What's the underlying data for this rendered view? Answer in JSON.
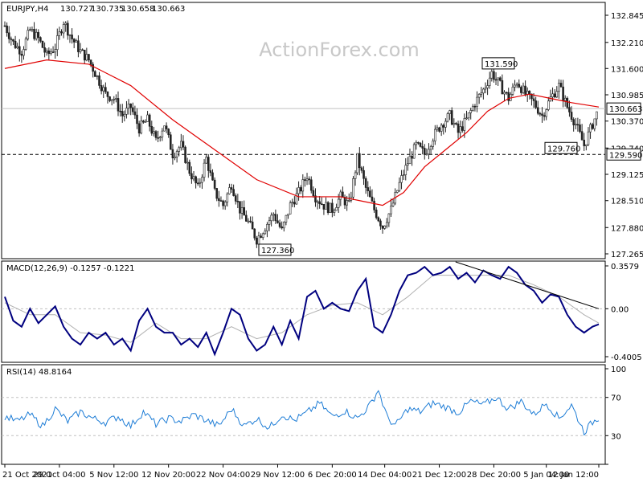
{
  "chart_data": {
    "type": "candlestick-with-indicators",
    "symbol": "EURJPY,H4",
    "header_values": [
      "130.727",
      "130.735",
      "130.658",
      "130.663"
    ],
    "watermark": "ActionForex.com",
    "colors": {
      "candles": "#222222",
      "ma": "#e00000",
      "macd": "#00007f",
      "signal": "#b0b0b0",
      "rsi": "#1e7dd6",
      "grid": "#c0c0c0",
      "frame": "#000000"
    },
    "price_panel": {
      "ylim": [
        127.265,
        132.845
      ],
      "y_ticks": [
        "132.845",
        "132.210",
        "131.600",
        "130.985",
        "130.370",
        "129.740",
        "129.125",
        "128.510",
        "127.880",
        "127.265"
      ],
      "current_price": "130.663",
      "support_level": "129.590",
      "annotations": [
        "131.590",
        "129.760",
        "127.360"
      ],
      "close_path": [
        [
          0,
          132.6
        ],
        [
          4,
          132.2
        ],
        [
          8,
          132.0
        ],
        [
          12,
          132.5
        ],
        [
          16,
          132.3
        ],
        [
          20,
          131.9
        ],
        [
          24,
          132.1
        ],
        [
          28,
          132.7
        ],
        [
          32,
          132.3
        ],
        [
          36,
          132.0
        ],
        [
          40,
          131.8
        ],
        [
          44,
          131.4
        ],
        [
          48,
          131.0
        ],
        [
          52,
          130.9
        ],
        [
          56,
          130.5
        ],
        [
          60,
          130.7
        ],
        [
          64,
          130.2
        ],
        [
          68,
          130.4
        ],
        [
          72,
          129.9
        ],
        [
          76,
          130.3
        ],
        [
          80,
          129.6
        ],
        [
          84,
          129.8
        ],
        [
          88,
          129.2
        ],
        [
          92,
          128.8
        ],
        [
          96,
          129.5
        ],
        [
          100,
          128.7
        ],
        [
          104,
          128.4
        ],
        [
          108,
          128.9
        ],
        [
          112,
          128.3
        ],
        [
          116,
          128.0
        ],
        [
          120,
          127.6
        ],
        [
          124,
          127.9
        ],
        [
          128,
          128.2
        ],
        [
          132,
          127.8
        ],
        [
          136,
          128.4
        ],
        [
          140,
          128.7
        ],
        [
          144,
          129.1
        ],
        [
          148,
          128.6
        ],
        [
          152,
          128.4
        ],
        [
          156,
          128.3
        ],
        [
          160,
          128.6
        ],
        [
          164,
          128.4
        ],
        [
          168,
          129.5
        ],
        [
          172,
          128.8
        ],
        [
          176,
          128.3
        ],
        [
          180,
          127.9
        ],
        [
          184,
          128.3
        ],
        [
          188,
          128.9
        ],
        [
          192,
          129.4
        ],
        [
          196,
          129.8
        ],
        [
          200,
          129.6
        ],
        [
          204,
          130.0
        ],
        [
          208,
          130.3
        ],
        [
          212,
          130.5
        ],
        [
          216,
          130.1
        ],
        [
          220,
          130.4
        ],
        [
          224,
          130.8
        ],
        [
          228,
          131.1
        ],
        [
          232,
          131.5
        ],
        [
          236,
          131.2
        ],
        [
          240,
          130.9
        ],
        [
          244,
          131.3
        ],
        [
          248,
          131.0
        ],
        [
          252,
          130.8
        ],
        [
          256,
          130.5
        ],
        [
          260,
          130.9
        ],
        [
          264,
          131.2
        ],
        [
          268,
          130.7
        ],
        [
          272,
          130.3
        ],
        [
          276,
          129.8
        ],
        [
          280,
          130.3
        ],
        [
          283,
          130.66
        ]
      ],
      "ma_path": [
        [
          0,
          131.6
        ],
        [
          20,
          131.8
        ],
        [
          40,
          131.7
        ],
        [
          60,
          131.2
        ],
        [
          80,
          130.4
        ],
        [
          100,
          129.7
        ],
        [
          120,
          129.0
        ],
        [
          140,
          128.6
        ],
        [
          160,
          128.6
        ],
        [
          170,
          128.5
        ],
        [
          180,
          128.4
        ],
        [
          190,
          128.7
        ],
        [
          200,
          129.3
        ],
        [
          210,
          129.7
        ],
        [
          220,
          130.1
        ],
        [
          230,
          130.6
        ],
        [
          240,
          130.9
        ],
        [
          250,
          131.0
        ],
        [
          260,
          130.9
        ],
        [
          270,
          130.8
        ],
        [
          283,
          130.7
        ]
      ]
    },
    "macd_panel": {
      "label": "MACD(12,26,9) -0.1257 -0.1221",
      "ylim": [
        -0.4005,
        0.3579
      ],
      "y_ticks": [
        "0.3579",
        "0.00",
        "-0.4005"
      ],
      "macd_path": [
        [
          0,
          0.1
        ],
        [
          4,
          -0.1
        ],
        [
          8,
          -0.15
        ],
        [
          12,
          0.0
        ],
        [
          16,
          -0.12
        ],
        [
          20,
          -0.05
        ],
        [
          24,
          0.02
        ],
        [
          28,
          -0.15
        ],
        [
          32,
          -0.25
        ],
        [
          36,
          -0.3
        ],
        [
          40,
          -0.2
        ],
        [
          44,
          -0.25
        ],
        [
          48,
          -0.2
        ],
        [
          52,
          -0.3
        ],
        [
          56,
          -0.25
        ],
        [
          60,
          -0.35
        ],
        [
          64,
          -0.1
        ],
        [
          68,
          0.0
        ],
        [
          72,
          -0.15
        ],
        [
          76,
          -0.2
        ],
        [
          80,
          -0.2
        ],
        [
          84,
          -0.3
        ],
        [
          88,
          -0.25
        ],
        [
          92,
          -0.32
        ],
        [
          96,
          -0.2
        ],
        [
          100,
          -0.38
        ],
        [
          104,
          -0.2
        ],
        [
          108,
          0.0
        ],
        [
          112,
          -0.05
        ],
        [
          116,
          -0.25
        ],
        [
          120,
          -0.35
        ],
        [
          124,
          -0.3
        ],
        [
          128,
          -0.15
        ],
        [
          132,
          -0.3
        ],
        [
          136,
          -0.1
        ],
        [
          140,
          -0.25
        ],
        [
          144,
          0.1
        ],
        [
          148,
          0.15
        ],
        [
          152,
          0.0
        ],
        [
          156,
          0.05
        ],
        [
          160,
          0.0
        ],
        [
          164,
          -0.02
        ],
        [
          168,
          0.15
        ],
        [
          172,
          0.25
        ],
        [
          176,
          -0.15
        ],
        [
          180,
          -0.2
        ],
        [
          184,
          -0.05
        ],
        [
          188,
          0.15
        ],
        [
          192,
          0.28
        ],
        [
          196,
          0.3
        ],
        [
          200,
          0.35
        ],
        [
          204,
          0.28
        ],
        [
          208,
          0.3
        ],
        [
          212,
          0.35
        ],
        [
          216,
          0.25
        ],
        [
          220,
          0.3
        ],
        [
          224,
          0.22
        ],
        [
          228,
          0.32
        ],
        [
          232,
          0.28
        ],
        [
          236,
          0.25
        ],
        [
          240,
          0.35
        ],
        [
          244,
          0.3
        ],
        [
          248,
          0.2
        ],
        [
          252,
          0.15
        ],
        [
          256,
          0.05
        ],
        [
          260,
          0.12
        ],
        [
          264,
          0.1
        ],
        [
          268,
          -0.05
        ],
        [
          272,
          -0.15
        ],
        [
          276,
          -0.2
        ],
        [
          280,
          -0.15
        ],
        [
          283,
          -0.13
        ]
      ],
      "signal_path": [
        [
          0,
          0.05
        ],
        [
          12,
          -0.05
        ],
        [
          24,
          -0.05
        ],
        [
          36,
          -0.2
        ],
        [
          48,
          -0.22
        ],
        [
          60,
          -0.28
        ],
        [
          72,
          -0.12
        ],
        [
          84,
          -0.25
        ],
        [
          96,
          -0.25
        ],
        [
          108,
          -0.15
        ],
        [
          120,
          -0.25
        ],
        [
          132,
          -0.2
        ],
        [
          144,
          -0.05
        ],
        [
          156,
          0.03
        ],
        [
          168,
          0.05
        ],
        [
          180,
          -0.05
        ],
        [
          192,
          0.1
        ],
        [
          204,
          0.28
        ],
        [
          216,
          0.28
        ],
        [
          228,
          0.28
        ],
        [
          240,
          0.28
        ],
        [
          252,
          0.2
        ],
        [
          264,
          0.1
        ],
        [
          276,
          -0.05
        ],
        [
          283,
          -0.12
        ]
      ],
      "trendline": [
        [
          232,
          0.41
        ],
        [
          283,
          0.0
        ]
      ]
    },
    "rsi_panel": {
      "label": "RSI(14) 48.8164",
      "ylim": [
        0,
        100
      ],
      "y_ticks": [
        "100",
        "70",
        "30",
        "0"
      ],
      "levels": [
        70,
        30
      ],
      "rsi_path": [
        [
          0,
          50
        ],
        [
          6,
          45
        ],
        [
          12,
          52
        ],
        [
          18,
          40
        ],
        [
          24,
          58
        ],
        [
          30,
          45
        ],
        [
          36,
          55
        ],
        [
          42,
          48
        ],
        [
          48,
          44
        ],
        [
          54,
          50
        ],
        [
          60,
          40
        ],
        [
          66,
          55
        ],
        [
          72,
          42
        ],
        [
          78,
          48
        ],
        [
          84,
          45
        ],
        [
          90,
          52
        ],
        [
          96,
          46
        ],
        [
          102,
          40
        ],
        [
          108,
          58
        ],
        [
          114,
          40
        ],
        [
          120,
          48
        ],
        [
          126,
          38
        ],
        [
          132,
          52
        ],
        [
          138,
          46
        ],
        [
          144,
          54
        ],
        [
          150,
          64
        ],
        [
          156,
          50
        ],
        [
          162,
          56
        ],
        [
          168,
          48
        ],
        [
          174,
          62
        ],
        [
          178,
          78
        ],
        [
          182,
          50
        ],
        [
          186,
          40
        ],
        [
          192,
          58
        ],
        [
          198,
          55
        ],
        [
          204,
          64
        ],
        [
          210,
          60
        ],
        [
          216,
          54
        ],
        [
          222,
          66
        ],
        [
          228,
          62
        ],
        [
          234,
          70
        ],
        [
          240,
          58
        ],
        [
          246,
          66
        ],
        [
          252,
          52
        ],
        [
          258,
          64
        ],
        [
          264,
          48
        ],
        [
          270,
          62
        ],
        [
          276,
          34
        ],
        [
          280,
          44
        ],
        [
          283,
          49
        ]
      ]
    },
    "x_labels": [
      "21 Oct 2021",
      "29 Oct 04:00",
      "5 Nov 12:00",
      "12 Nov 20:00",
      "22 Nov 04:00",
      "29 Nov 12:00",
      "6 Dec 20:00",
      "14 Dec 04:00",
      "21 Dec 12:00",
      "28 Dec 20:00",
      "5 Jan 04:00",
      "12 Jan 12:00"
    ]
  }
}
